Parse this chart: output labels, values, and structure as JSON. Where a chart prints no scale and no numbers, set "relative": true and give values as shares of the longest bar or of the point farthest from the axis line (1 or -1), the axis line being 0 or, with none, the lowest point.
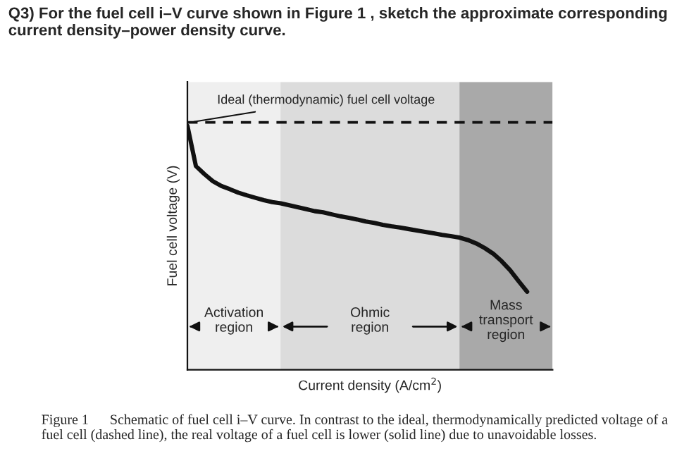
{
  "chart_data": {
    "type": "line",
    "relative": true,
    "title": "Q3) For the fuel cell i–V curve shown in Figure 1 , sketch the approximate corresponding current density–power density curve.",
    "xlabel": "Current density (A/cm$^{2}$)",
    "ylabel": "Fuel cell voltage (V)",
    "tick_labels": false,
    "grid": false,
    "legend": false,
    "categories": [
      null,
      null,
      null,
      null,
      null,
      null,
      null,
      null,
      null,
      null,
      null,
      null,
      null,
      null,
      null,
      null,
      null,
      null,
      null,
      null,
      null,
      null,
      null,
      null,
      null,
      null,
      null,
      null,
      null,
      null,
      null,
      null,
      null,
      null,
      null,
      null,
      null,
      null,
      null,
      null,
      null,
      null,
      null,
      null
    ],
    "series": [
      {
        "color": "#111111",
        "values": [
          1.0,
          0.835,
          0.802,
          0.773,
          0.753,
          0.74,
          0.726,
          0.715,
          0.705,
          0.695,
          0.687,
          0.682,
          0.674,
          0.666,
          0.658,
          0.65,
          0.645,
          0.637,
          0.629,
          0.623,
          0.616,
          0.608,
          0.602,
          0.594,
          0.588,
          0.583,
          0.577,
          0.571,
          0.565,
          0.559,
          0.553,
          0.548,
          0.542,
          0.532,
          0.518,
          0.499,
          0.476,
          0.445,
          0.408,
          0.363,
          0.32,
          null,
          null,
          null
        ]
      }
    ],
    "ref_lines": [
      {
        "axis": "y",
        "value": 1.014,
        "label": "Ideal (thermodynamic) fuel cell voltage",
        "color": "#111111",
        "line_style": "dashed"
      }
    ],
    "annotations": [
      {
        "text": "Activation\nregion"
      },
      {
        "text": "Ohmic\nregion"
      },
      {
        "text": "Mass\ntransport\nregion"
      },
      "Figure 1      Schematic of fuel cell i–V curve. In contrast to the ideal, thermodynamically predicted voltage of a fuel cell (dashed line), the real voltage of a fuel cell is lower (solid line) due to unavoidable losses."
    ]
  }
}
